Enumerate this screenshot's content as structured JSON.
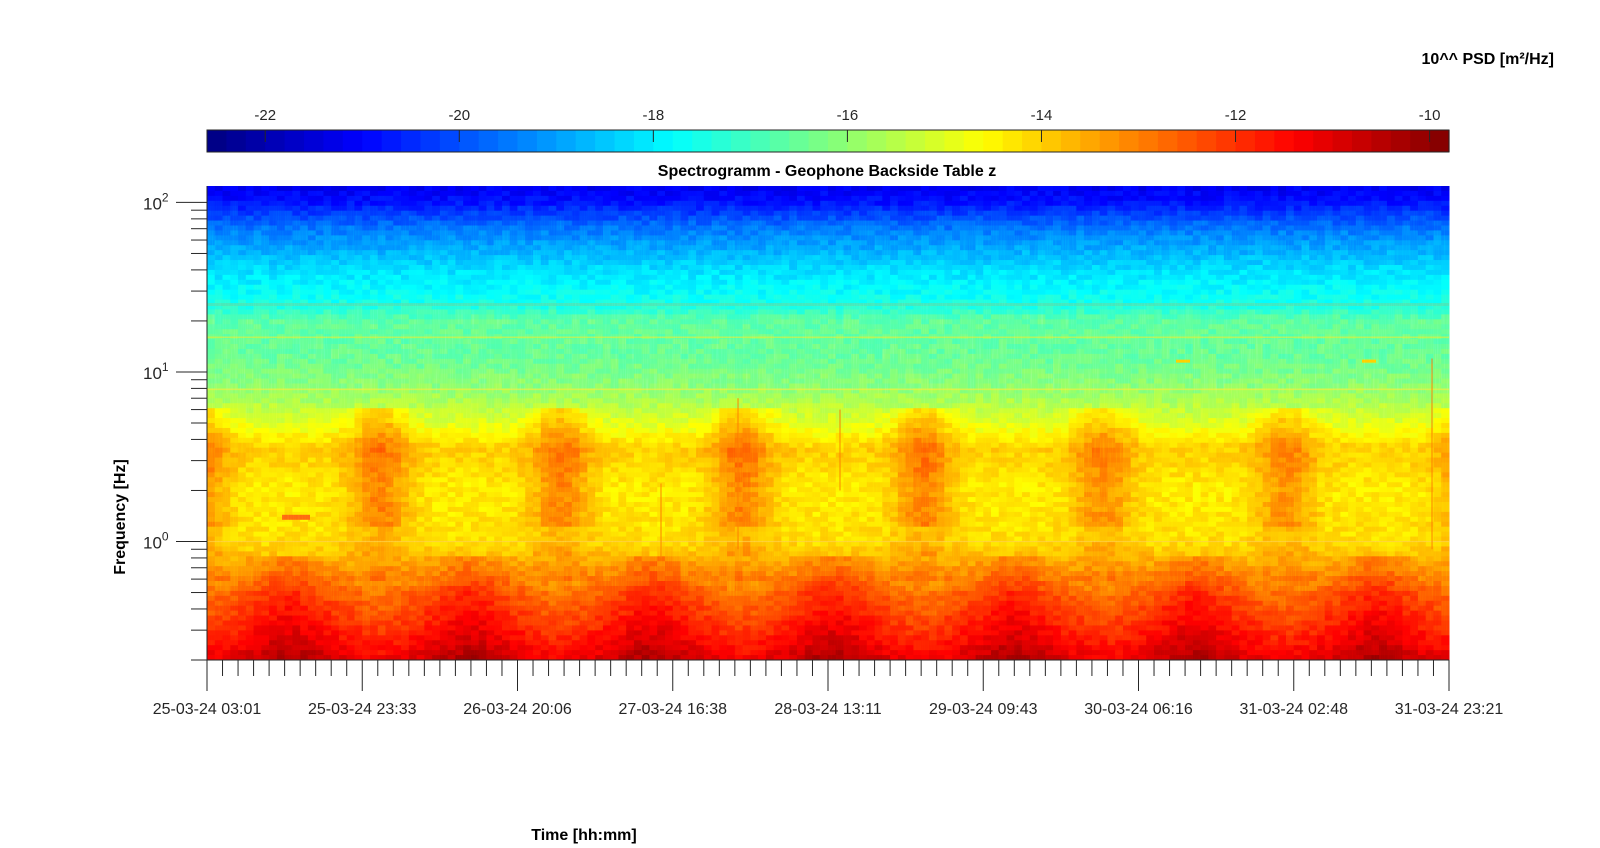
{
  "chart_data": {
    "type": "heatmap",
    "title": "Spectrogramm - Geophone Backside Table z",
    "xlabel": "Time [hh:mm]",
    "ylabel": "Frequency [Hz]",
    "colorbar": {
      "label": "10^^ PSD [m²/Hz]",
      "ticks": [
        -22,
        -20,
        -18,
        -16,
        -14,
        -12,
        -10
      ],
      "tick_labels": [
        "-22",
        "-20",
        "-18",
        "-16",
        "-14",
        "-12",
        "-10"
      ],
      "range": [
        -22.6,
        -9.8
      ],
      "colormap": "jet",
      "placement": "top"
    },
    "x": {
      "tick_labels": [
        "25-03-24 03:01",
        "25-03-24 23:33",
        "26-03-24 20:06",
        "27-03-24 16:38",
        "28-03-24 13:11",
        "29-03-24 09:43",
        "30-03-24 06:16",
        "31-03-24 02:48",
        "31-03-24 23:21"
      ],
      "minor_ticks_between_labels": 9
    },
    "y": {
      "scale": "log",
      "range": [
        0.2,
        125
      ],
      "tick_values": [
        1,
        10,
        100
      ],
      "tick_labels": [
        {
          "base": "10",
          "exp": "0"
        },
        {
          "base": "10",
          "exp": "1"
        },
        {
          "base": "10",
          "exp": "2"
        }
      ]
    },
    "psd_profile": {
      "freq_hz": [
        0.2,
        0.3,
        0.5,
        0.7,
        1.0,
        2.0,
        3.5,
        5,
        8,
        12,
        20,
        25,
        40,
        70,
        100,
        125
      ],
      "log10_psd": [
        -11.0,
        -11.8,
        -12.6,
        -13.5,
        -14.2,
        -14.4,
        -14.0,
        -15.0,
        -16.0,
        -16.5,
        -16.6,
        -17.5,
        -18.2,
        -19.5,
        -20.8,
        -21.2
      ]
    },
    "diurnal": {
      "day_activity_peaks": [
        "25-03-24",
        "26-03-24",
        "27-03-24",
        "28-03-24",
        "29-03-24",
        "30-03-24",
        "31-03-24"
      ],
      "weekend_quiet": [
        "30-03-24",
        "31-03-24"
      ]
    },
    "grid": false,
    "legend": "none"
  },
  "colors": {
    "jet": [
      "#00007f",
      "#0000ff",
      "#007fff",
      "#00ffff",
      "#7fff7f",
      "#ffff00",
      "#ff7f00",
      "#ff0000",
      "#7f0000"
    ]
  }
}
